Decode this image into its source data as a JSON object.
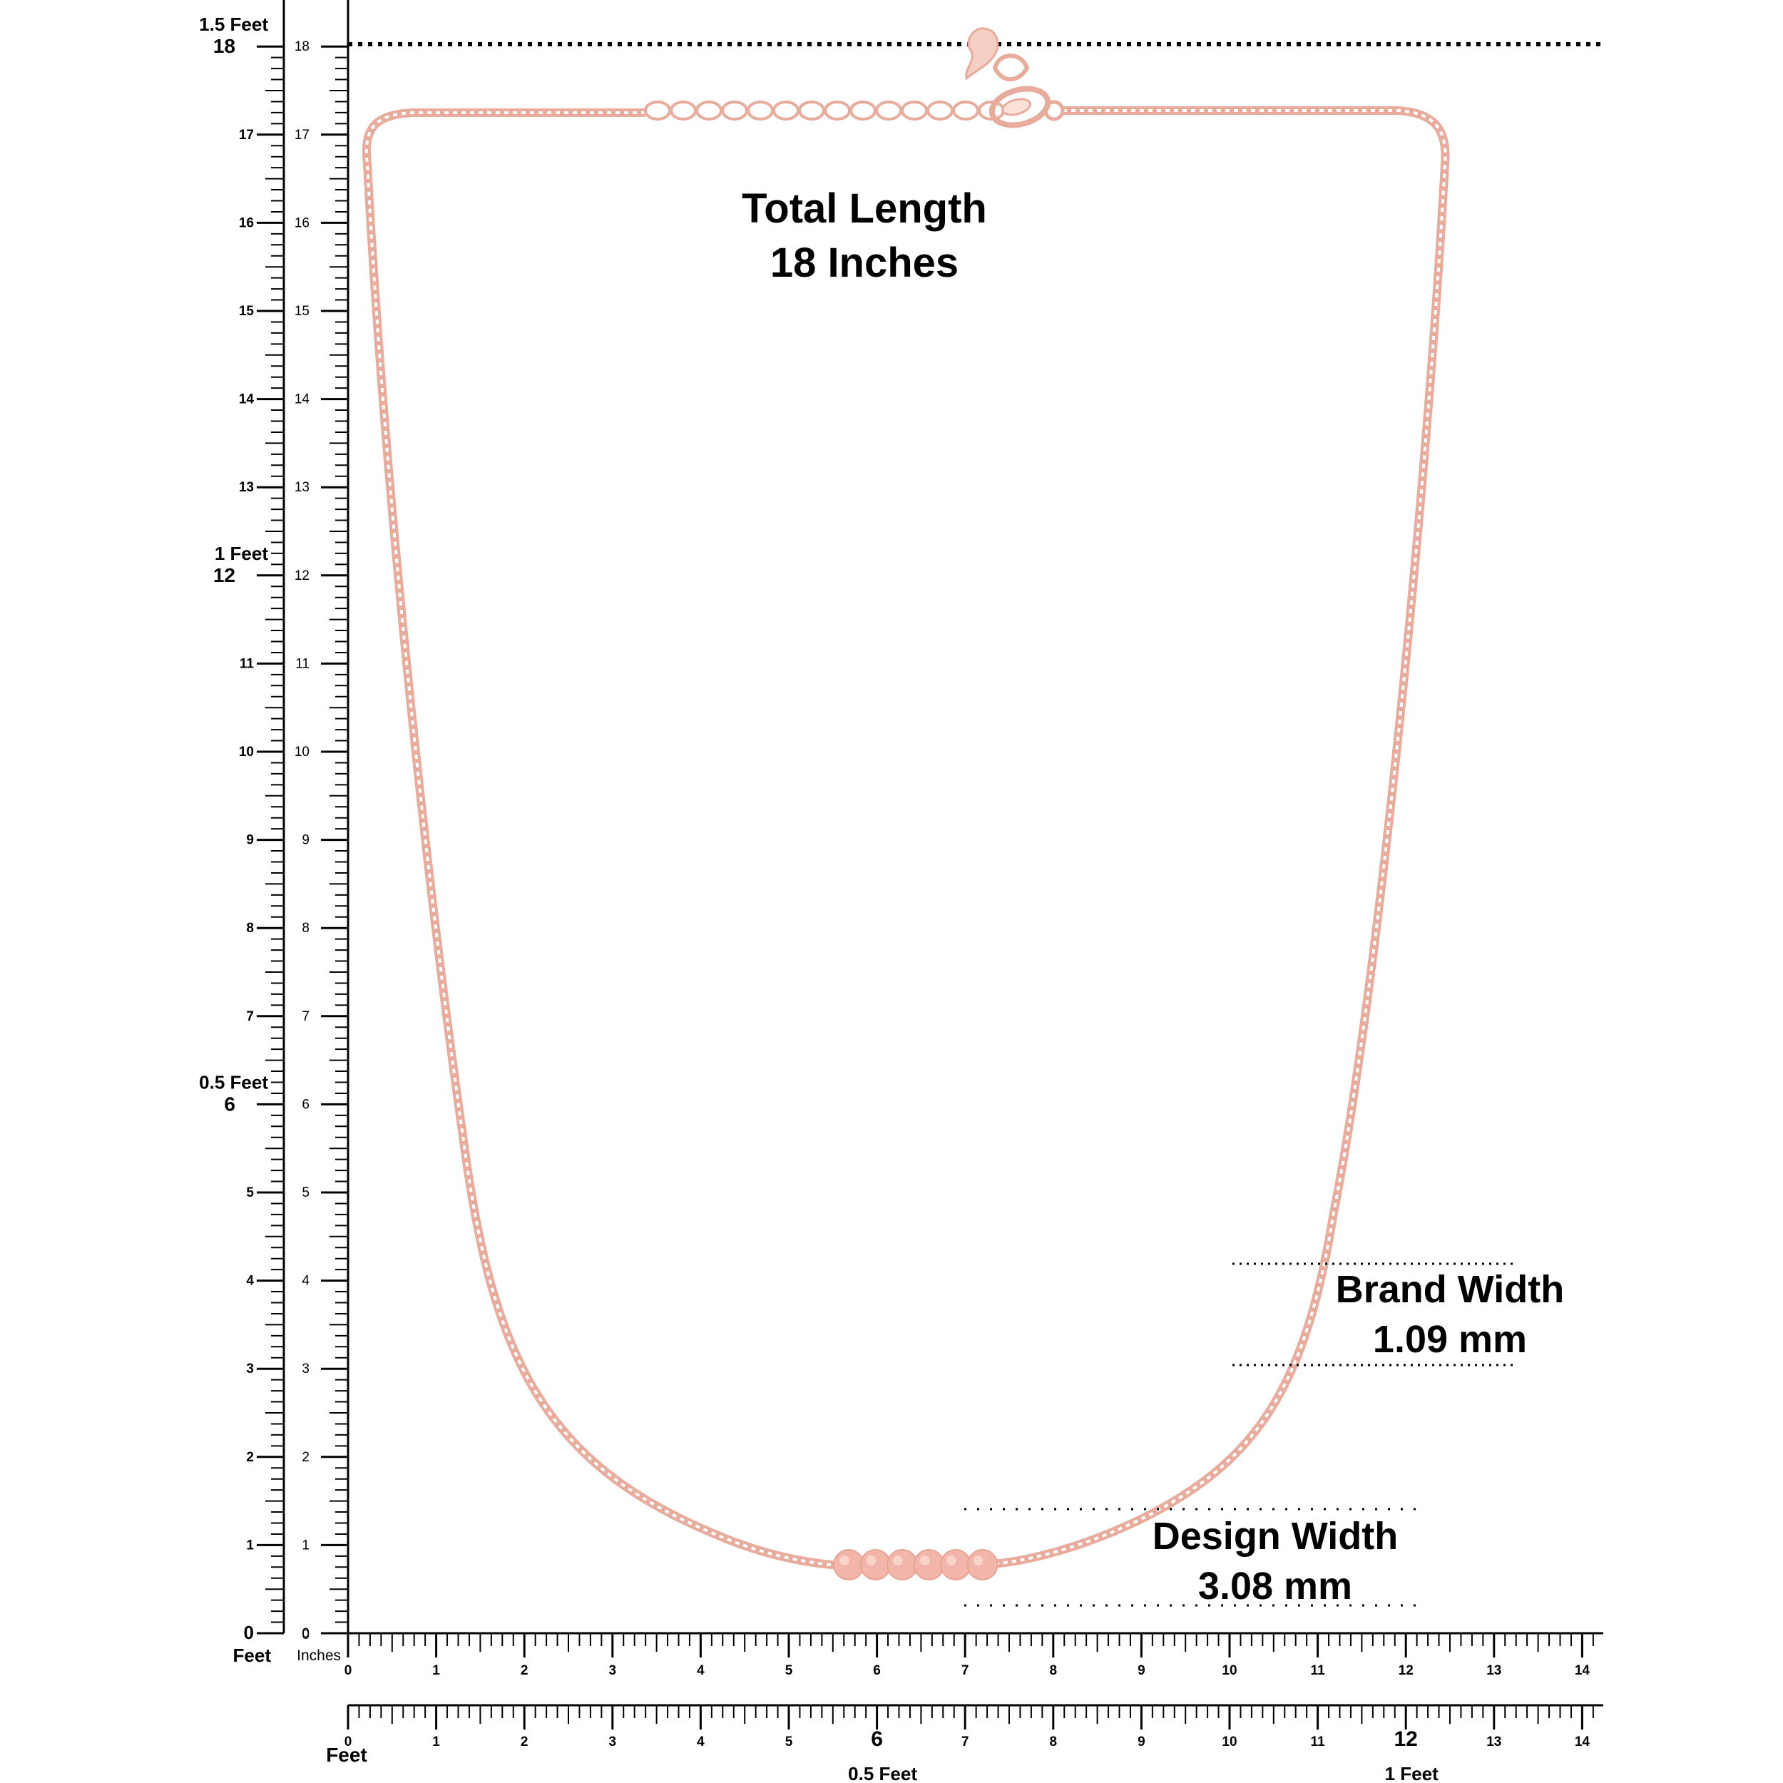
{
  "headline": {
    "title_line1": "Total Length",
    "title_line2": "18 Inches"
  },
  "callouts": {
    "brand": {
      "label": "Brand Width",
      "value": "1.09 mm"
    },
    "design": {
      "label": "Design Width",
      "value": "3.08 mm"
    }
  },
  "vertical_ruler": {
    "inch_labels": [
      "0",
      "1",
      "2",
      "3",
      "4",
      "5",
      "6",
      "7",
      "8",
      "9",
      "10",
      "11",
      "12",
      "13",
      "14",
      "15",
      "16",
      "17",
      "18"
    ],
    "feet_marks": [
      {
        "label": "1.5 Feet",
        "inch": "18"
      },
      {
        "label": "1 Feet",
        "inch": "12"
      },
      {
        "label": "0.5 Feet",
        "inch": "6"
      }
    ],
    "feet_zero": "0",
    "feet_unit_label": "Feet",
    "inch_zero": "0",
    "inch_unit_label": "Inches"
  },
  "horizontal_ruler_top": {
    "labels": [
      "0",
      "1",
      "2",
      "3",
      "4",
      "5",
      "6",
      "7",
      "8",
      "9",
      "10",
      "11",
      "12",
      "13",
      "14"
    ]
  },
  "horizontal_ruler_bottom": {
    "labels": [
      "0",
      "1",
      "2",
      "3",
      "4",
      "5",
      "6",
      "7",
      "8",
      "9",
      "10",
      "11",
      "12",
      "13",
      "14"
    ],
    "unit_label": "Feet",
    "feet_marks": [
      {
        "label": "0.5 Feet",
        "inch": "6"
      },
      {
        "label": "1 Feet",
        "inch": "12"
      }
    ]
  },
  "product": {
    "chain_color": "#e8ab9c",
    "bead_color": "#f1b6a9",
    "bead_count": 6
  },
  "colors": {
    "ruler_ink": "#000000",
    "guide_ink": "#000000"
  }
}
